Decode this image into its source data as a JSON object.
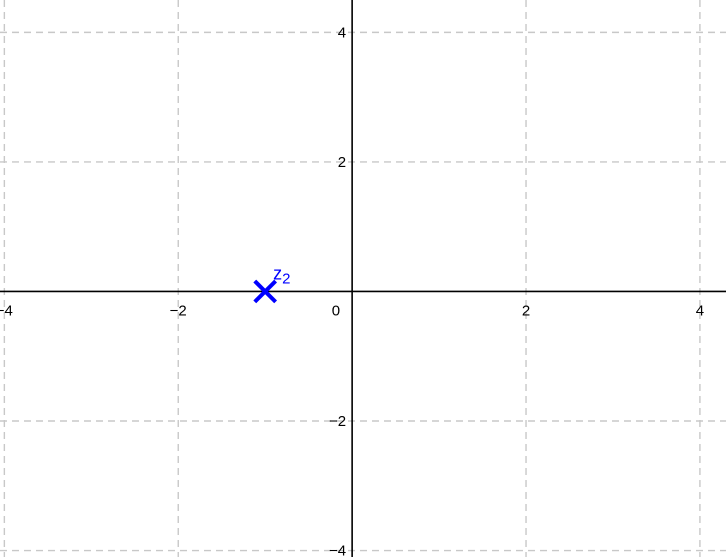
{
  "chart_data": {
    "type": "scatter",
    "title": "",
    "xlabel": "",
    "ylabel": "",
    "xlim": [
      -4.05,
      4.3
    ],
    "ylim": [
      -4.1,
      4.5
    ],
    "x_ticks": [
      -4,
      -2,
      2,
      4
    ],
    "y_ticks": [
      -4,
      -2,
      2,
      4
    ],
    "x_tick_labels": [
      "−4",
      "−2",
      "2",
      "4"
    ],
    "y_tick_labels": [
      "−4",
      "−2",
      "2",
      "4"
    ],
    "origin_label": "0",
    "grid": true,
    "grid_style": "dashed",
    "points": [
      {
        "label": "z",
        "subscript": "2",
        "x": -1,
        "y": 0,
        "marker": "x",
        "color": "#0000ff"
      }
    ]
  }
}
